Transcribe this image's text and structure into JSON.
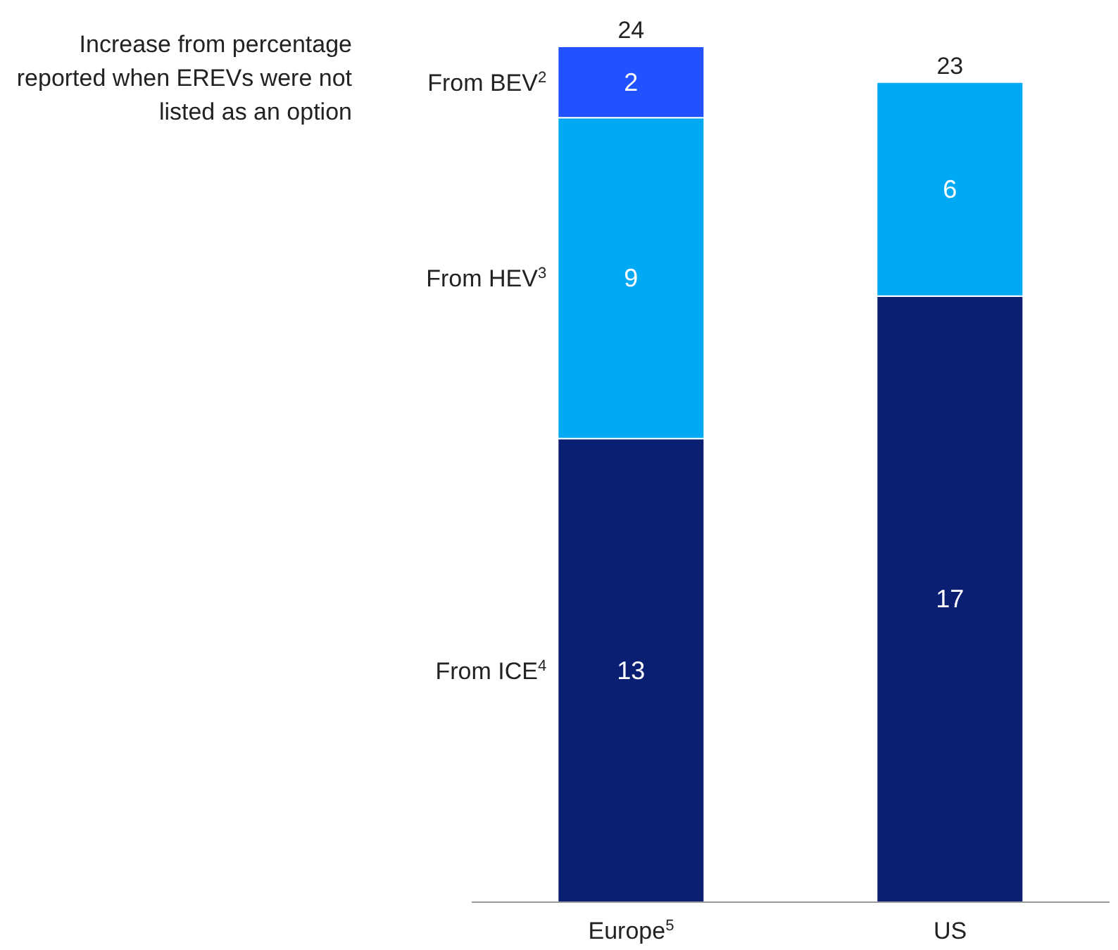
{
  "chart_data": {
    "type": "bar",
    "stacked": true,
    "categories": [
      "Europe$^{5}$",
      "US"
    ],
    "series": [
      {
        "name": "From ICE$^{4}$",
        "color": "#0a1f72",
        "values": [
          13,
          17
        ]
      },
      {
        "name": "From HEV$^{3}$",
        "color": "#00a9f4",
        "values": [
          9,
          6
        ]
      },
      {
        "name": "From BEV$^{2}$",
        "color": "#2251ff",
        "values": [
          2,
          null
        ]
      }
    ],
    "ylim": [
      0,
      24
    ],
    "tick_labels": "x",
    "data_labels": true,
    "totals": [
      "24",
      "23"
    ],
    "legend": false,
    "grid": false,
    "annotations": [
      "Increase from percentage reported when EREVs were not listed as an option"
    ]
  }
}
